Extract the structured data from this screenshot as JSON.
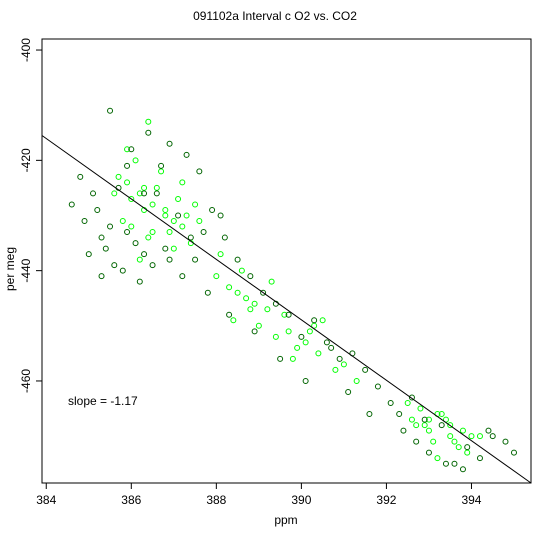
{
  "chart_data": {
    "type": "scatter",
    "title": "091102a   Interval c O2 vs. CO2",
    "xlabel": "ppm",
    "ylabel": "per meg",
    "xlim": [
      383.9,
      395.4
    ],
    "ylim": [
      -478.5,
      -398.0
    ],
    "x_ticks": [
      384,
      386,
      388,
      390,
      392,
      394
    ],
    "y_ticks": [
      -400,
      -420,
      -440,
      -460
    ],
    "x_tick_labels": [
      "384",
      "386",
      "388",
      "390",
      "392",
      "394"
    ],
    "y_tick_labels": [
      "-400",
      "-420",
      "-440",
      "-460"
    ],
    "annotation": "slope =  -1.17",
    "fit_line": {
      "slope": -1.17,
      "points": [
        [
          383.9,
          -415.5
        ],
        [
          395.4,
          -478.5
        ]
      ]
    },
    "marker_colors": [
      "#00ff00",
      "#006400"
    ],
    "series": [
      {
        "color": "#00ff00",
        "x": [
          385.9,
          386.2,
          386.5,
          386.8,
          387.0,
          387.2,
          386.0,
          385.7,
          386.3,
          386.6,
          386.9,
          387.3,
          387.5,
          386.1,
          385.8,
          386.4,
          386.7,
          387.1,
          387.4,
          385.6,
          386.0,
          386.3,
          386.8,
          387.0,
          387.6,
          386.2,
          385.9,
          386.5,
          387.2,
          386.4,
          388.0,
          388.3,
          388.6,
          388.9,
          389.2,
          388.1,
          388.4,
          388.7,
          389.0,
          389.4,
          389.6,
          389.9,
          390.2,
          390.5,
          389.8,
          390.1,
          390.4,
          390.8,
          391.0,
          391.3,
          388.5,
          388.8,
          389.3,
          389.7,
          390.3,
          392.6,
          392.9,
          393.2,
          393.5,
          393.8,
          392.8,
          393.1,
          393.4,
          393.7,
          394.0,
          392.7,
          393.0,
          393.3,
          393.6,
          393.9,
          392.5,
          393.2,
          393.5,
          394.2,
          393.0
        ],
        "y": [
          -424,
          -426,
          -428,
          -430,
          -431,
          -432,
          -427,
          -423,
          -429,
          -425,
          -433,
          -430,
          -428,
          -420,
          -431,
          -434,
          -422,
          -427,
          -435,
          -426,
          -432,
          -425,
          -429,
          -436,
          -431,
          -438,
          -418,
          -433,
          -424,
          -413,
          -441,
          -443,
          -440,
          -446,
          -447,
          -437,
          -449,
          -445,
          -450,
          -452,
          -448,
          -454,
          -451,
          -449,
          -456,
          -453,
          -455,
          -458,
          -457,
          -460,
          -444,
          -447,
          -442,
          -451,
          -450,
          -467,
          -468,
          -466,
          -470,
          -469,
          -465,
          -471,
          -467,
          -472,
          -470,
          -468,
          -469,
          -466,
          -471,
          -473,
          -464,
          -474,
          -468,
          -470,
          -467
        ]
      },
      {
        "color": "#006400",
        "x": [
          384.6,
          384.9,
          385.1,
          385.3,
          385.5,
          385.0,
          385.2,
          385.4,
          385.7,
          385.9,
          384.8,
          385.6,
          386.1,
          386.3,
          386.6,
          386.9,
          387.1,
          387.4,
          387.7,
          387.9,
          385.3,
          385.8,
          386.2,
          386.5,
          386.8,
          387.2,
          387.5,
          387.8,
          388.2,
          388.5,
          388.8,
          389.1,
          389.4,
          389.7,
          390.0,
          390.3,
          390.6,
          390.9,
          391.2,
          391.5,
          391.8,
          392.1,
          388.3,
          388.9,
          389.5,
          390.1,
          390.7,
          391.1,
          391.6,
          392.3,
          392.4,
          392.7,
          393.0,
          393.3,
          393.6,
          393.9,
          394.2,
          394.5,
          394.8,
          395.0,
          392.9,
          393.4,
          393.8,
          394.4,
          392.6,
          386.0,
          386.7,
          387.3,
          385.5,
          386.4,
          387.6,
          388.1,
          386.9,
          385.9,
          386.3
        ],
        "y": [
          -428,
          -431,
          -426,
          -434,
          -432,
          -437,
          -429,
          -436,
          -425,
          -433,
          -423,
          -439,
          -435,
          -437,
          -426,
          -438,
          -430,
          -434,
          -433,
          -429,
          -441,
          -440,
          -442,
          -439,
          -436,
          -441,
          -438,
          -444,
          -434,
          -438,
          -441,
          -444,
          -446,
          -448,
          -452,
          -449,
          -453,
          -456,
          -455,
          -458,
          -461,
          -464,
          -448,
          -451,
          -456,
          -460,
          -454,
          -462,
          -466,
          -466,
          -469,
          -471,
          -473,
          -468,
          -475,
          -472,
          -474,
          -470,
          -471,
          -473,
          -467,
          -475,
          -476,
          -469,
          -463,
          -418,
          -421,
          -419,
          -411,
          -415,
          -422,
          -430,
          -417,
          -421,
          -426
        ]
      }
    ]
  }
}
